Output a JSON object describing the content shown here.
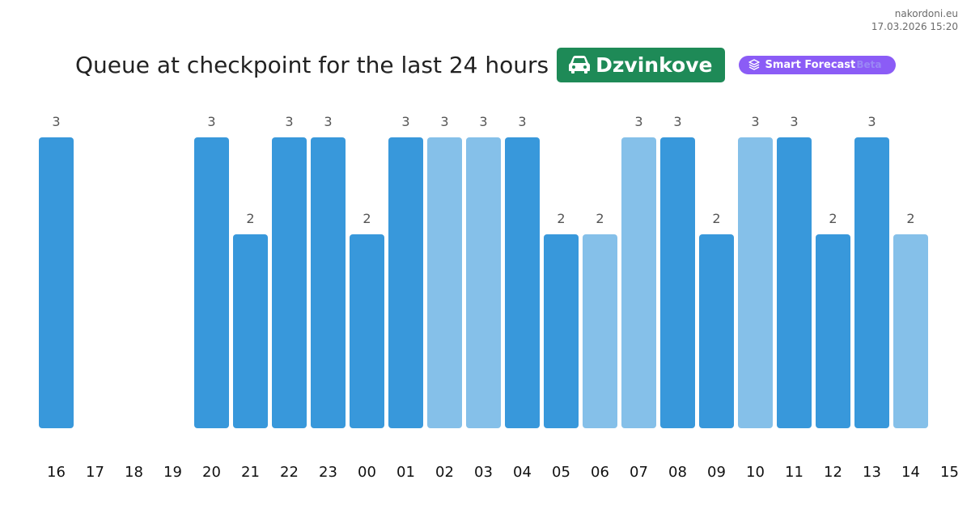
{
  "site": {
    "domain": "nakordoni.eu",
    "datetime": "17.03.2026 15:20"
  },
  "header": {
    "title": "Queue at checkpoint for the last 24 hours",
    "checkpoint": "Dzvinkove",
    "forecast_label": "Smart Forecast",
    "forecast_tag": "Beta"
  },
  "colors": {
    "checkpoint_badge": "#1e8a57",
    "forecast_pill": "#8b5cf6",
    "bar_dark": "#3898db",
    "bar_light": "#85c0e9",
    "value_label": "#555555",
    "axis_label": "#111111"
  },
  "icons": {
    "checkpoint": "car-icon",
    "forecast": "layers-icon"
  },
  "chart_data": {
    "type": "bar",
    "categories": [
      "16",
      "17",
      "18",
      "19",
      "20",
      "21",
      "22",
      "23",
      "00",
      "01",
      "02",
      "03",
      "04",
      "05",
      "06",
      "07",
      "08",
      "09",
      "10",
      "11",
      "12",
      "13",
      "14",
      "15"
    ],
    "values": [
      3,
      null,
      null,
      null,
      3,
      2,
      3,
      3,
      2,
      3,
      3,
      3,
      3,
      2,
      2,
      3,
      3,
      2,
      3,
      3,
      2,
      3,
      2,
      null
    ],
    "shade": [
      "dark",
      "dark",
      "dark",
      "dark",
      "dark",
      "dark",
      "dark",
      "dark",
      "dark",
      "dark",
      "light",
      "light",
      "dark",
      "dark",
      "light",
      "light",
      "dark",
      "dark",
      "light",
      "dark",
      "dark",
      "dark",
      "light",
      "dark"
    ],
    "ylim": [
      0,
      3
    ],
    "grid": false,
    "data_labels": true
  }
}
